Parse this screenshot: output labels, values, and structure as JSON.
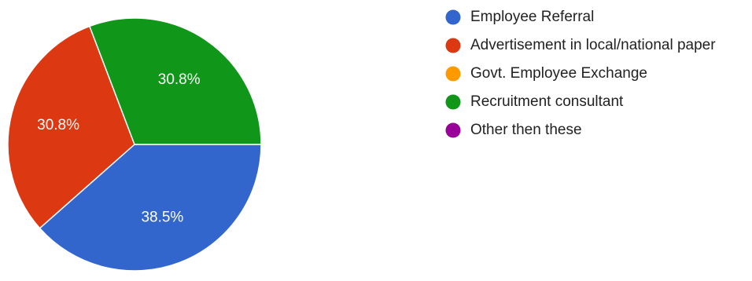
{
  "chart_data": {
    "type": "pie",
    "title": "",
    "slices": [
      {
        "label": "Employee Referral",
        "value": 38.5,
        "display": "38.5%",
        "color": "#3366cc"
      },
      {
        "label": "Advertisement in local/national paper",
        "value": 30.8,
        "display": "30.8%",
        "color": "#dc3912"
      },
      {
        "label": "Govt. Employee Exchange",
        "value": 0,
        "display": "",
        "color": "#ff9900"
      },
      {
        "label": "Recruitment consultant",
        "value": 30.8,
        "display": "30.8%",
        "color": "#109618"
      },
      {
        "label": "Other then these",
        "value": 0,
        "display": "",
        "color": "#990099"
      }
    ],
    "start": "right (3 o'clock), clockwise",
    "legend_position": "right"
  }
}
